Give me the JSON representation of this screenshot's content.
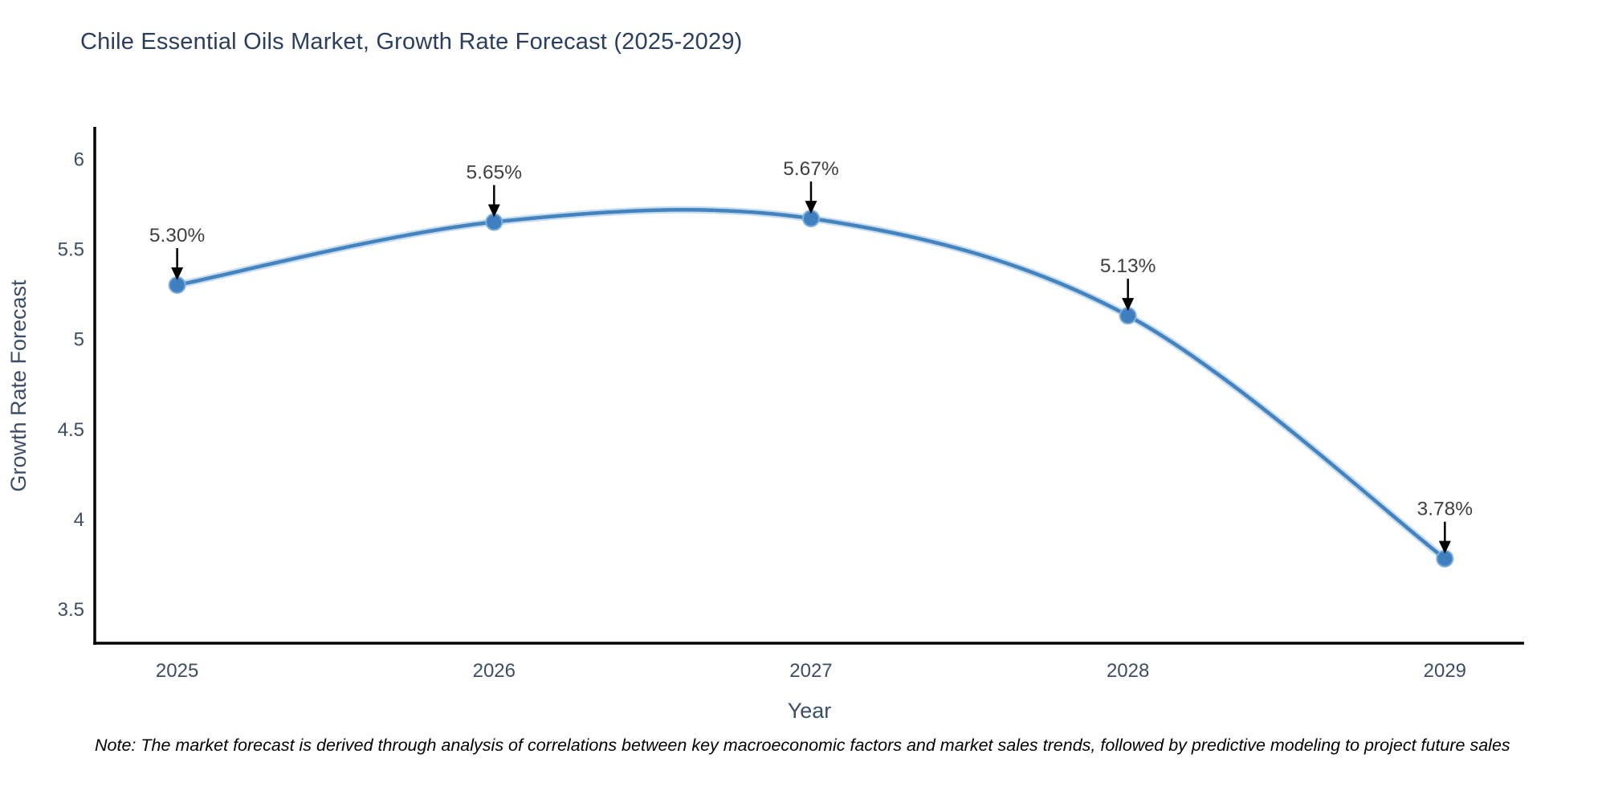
{
  "chart_data": {
    "type": "line",
    "title": "Chile Essential Oils Market, Growth Rate Forecast (2025-2029)",
    "xlabel": "Year",
    "ylabel": "Growth Rate Forecast",
    "x": [
      2025,
      2026,
      2027,
      2028,
      2029
    ],
    "values": [
      5.3,
      5.65,
      5.67,
      5.13,
      3.78
    ],
    "point_labels": [
      "5.30%",
      "5.65%",
      "5.67%",
      "5.13%",
      "3.78%"
    ],
    "xticks": [
      "2025",
      "2026",
      "2027",
      "2028",
      "2029"
    ],
    "yticks": [
      3.5,
      4,
      4.5,
      5,
      5.5,
      6
    ],
    "xlim": [
      2024.74,
      2029.25
    ],
    "ylim": [
      3.31,
      6.17
    ],
    "grid": false,
    "legend_position": "none",
    "line_shape": "spline",
    "line_color": "#4383bf",
    "line_halo_color": "rgba(130,178,218,0.45)",
    "marker_color": "#3f7fbf",
    "marker_stroke": "#7fb0d8",
    "annotation_arrow_color": "#000000"
  },
  "note": "Note: The market forecast is derived through analysis of correlations between key macroeconomic factors and market sales trends, followed by predictive modeling to project future sales",
  "colors": {
    "title": "#2a3f5f",
    "tick_label": "#3e4d66",
    "axis_line": "#000000",
    "annotation_text": "#404040"
  }
}
